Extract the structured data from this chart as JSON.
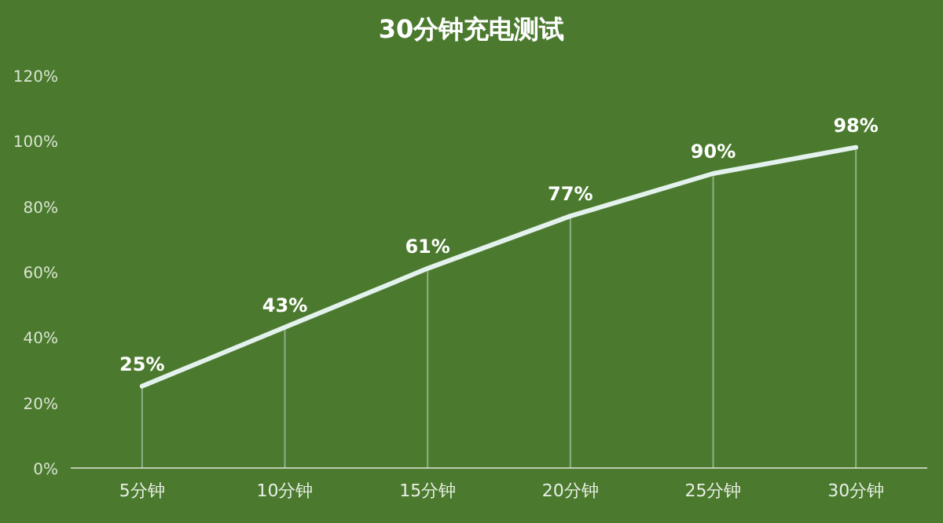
{
  "chart_data": {
    "type": "line",
    "title": "30分钟充电测试",
    "categories": [
      "5分钟",
      "10分钟",
      "15分钟",
      "20分钟",
      "25分钟",
      "30分钟"
    ],
    "series": [
      {
        "color": "#e4f2ee",
        "values": [
          25,
          43,
          61,
          77,
          90,
          98
        ]
      }
    ],
    "value_labels": [
      "25%",
      "43%",
      "61%",
      "77%",
      "90%",
      "98%"
    ],
    "ylim": [
      0,
      120
    ],
    "yticks": [
      {
        "value": 0,
        "label": "0%"
      },
      {
        "value": 20,
        "label": "20%"
      },
      {
        "value": 40,
        "label": "40%"
      },
      {
        "value": 60,
        "label": "60%"
      },
      {
        "value": 80,
        "label": "80%"
      },
      {
        "value": 100,
        "label": "100%"
      },
      {
        "value": 120,
        "label": "120%"
      }
    ],
    "grid": "x",
    "marker": "none",
    "line_style": "solid"
  }
}
